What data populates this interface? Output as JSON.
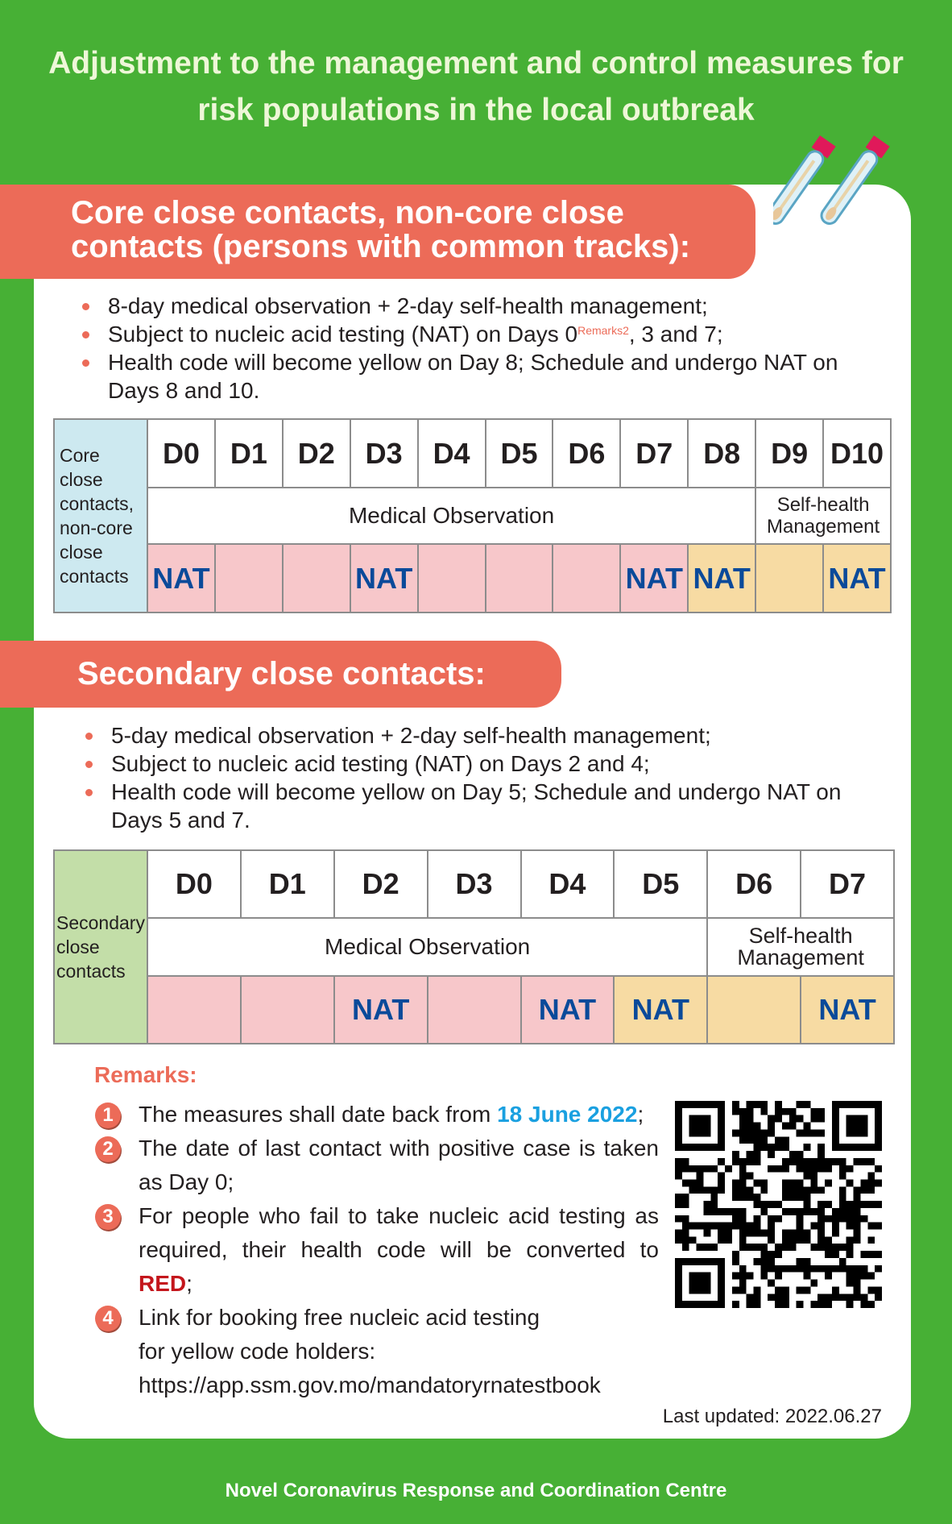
{
  "title": [
    "Adjustment to the management and control measures for",
    "risk populations in the local outbreak"
  ],
  "section1": {
    "heading": [
      "Core close contacts, non-core close",
      "contacts (persons with common tracks):"
    ],
    "bullets": [
      "8-day medical observation + 2-day self-health management;",
      "Subject to nucleic acid testing (NAT) on Days 0",
      ", 3 and 7;",
      "Health code will become yellow on Day 8; Schedule and undergo NAT on",
      "Days 8 and 10."
    ],
    "remark_ref": "Remarks2",
    "table": {
      "row_label": "Core close contacts, non-core close contacts",
      "days": [
        "D0",
        "D1",
        "D2",
        "D3",
        "D4",
        "D5",
        "D6",
        "D7",
        "D8",
        "D9",
        "D10"
      ],
      "observation": "Medical Observation",
      "self_health": "Self-health Management",
      "nat": [
        "NAT",
        "",
        "",
        "NAT",
        "",
        "",
        "",
        "NAT",
        "NAT",
        "",
        "NAT"
      ]
    }
  },
  "section2": {
    "heading": "Secondary close contacts:",
    "bullets": [
      "5-day medical observation + 2-day self-health management;",
      "Subject to nucleic acid testing (NAT) on Days 2 and 4;",
      "Health code will become yellow on Day 5; Schedule and undergo NAT on",
      "Days 5 and 7."
    ],
    "table": {
      "row_label": "Secondary close contacts",
      "days": [
        "D0",
        "D1",
        "D2",
        "D3",
        "D4",
        "D5",
        "D6",
        "D7"
      ],
      "observation": "Medical Observation",
      "self_health": "Self-health Management",
      "nat": [
        "",
        "",
        "NAT",
        "",
        "NAT",
        "NAT",
        "",
        "NAT"
      ]
    }
  },
  "remarks": {
    "heading": "Remarks:",
    "items": [
      {
        "num": "1",
        "text": "The measures shall date back from ",
        "highlight": "18 June 2022",
        "after": ";"
      },
      {
        "num": "2",
        "text": "The date of last contact with positive case is taken as Day 0;"
      },
      {
        "num": "3",
        "text": "For people who fail to take nucleic acid testing as required, their health code will be converted to ",
        "highlight": "RED",
        "after": ";"
      },
      {
        "num": "4",
        "text": "Link for booking free nucleic acid testing for yellow code holders:",
        "link": "https://app.ssm.gov.mo/mandatoryrnatestbook"
      }
    ]
  },
  "last_updated": "Last updated: 2022.06.27",
  "footer": "Novel Coronavirus Response and Coordination Centre",
  "colors": {
    "background": "#47b035",
    "accent": "#ec6b58",
    "nat": "#0a4a9a",
    "observation": "#f7c7ca",
    "self_health": "#f7dba3"
  }
}
